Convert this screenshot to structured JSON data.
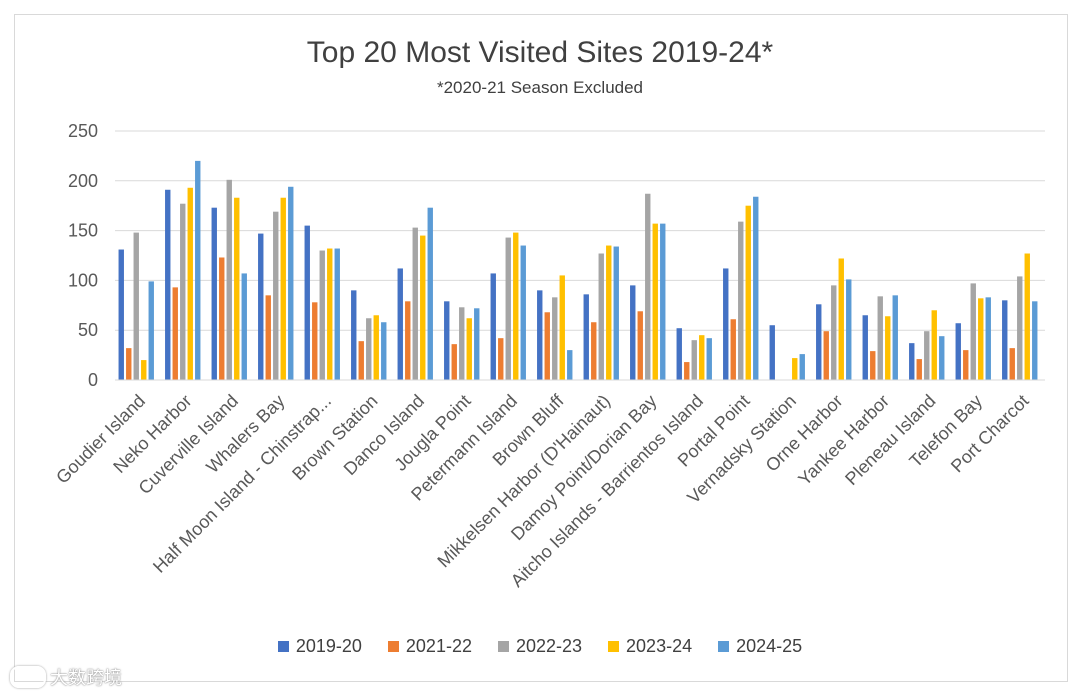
{
  "chart_data": {
    "type": "bar",
    "title": "Top 20 Most Visited Sites 2019-24*",
    "subtitle": "*2020-21 Season Excluded",
    "xlabel": "",
    "ylabel": "",
    "ylim": [
      0,
      250
    ],
    "yticks": [
      0,
      50,
      100,
      150,
      200,
      250
    ],
    "grid": true,
    "legend_position": "bottom",
    "categories": [
      "Goudier Island",
      "Neko Harbor",
      "Cuverville Island",
      "Whalers Bay",
      "Half Moon Island - Chinstrap...",
      "Brown Station",
      "Danco Island",
      "Jougla Point",
      "Petermann Island",
      "Brown Bluff",
      "Mikkelsen Harbor (D'Hainaut)",
      "Damoy Point/Dorian Bay",
      "Aitcho Islands - Barrientos Island",
      "Portal Point",
      "Vernadsky Station",
      "Orne Harbor",
      "Yankee Harbor",
      "Pleneau Island",
      "Telefon Bay",
      "Port Charcot"
    ],
    "series": [
      {
        "name": "2019-20",
        "color": "#4472c4",
        "values": [
          131,
          191,
          173,
          147,
          155,
          90,
          112,
          79,
          107,
          90,
          86,
          95,
          52,
          112,
          55,
          76,
          65,
          37,
          57,
          80
        ]
      },
      {
        "name": "2021-22",
        "color": "#ed7d31",
        "values": [
          32,
          93,
          123,
          85,
          78,
          39,
          79,
          36,
          42,
          68,
          58,
          69,
          18,
          61,
          0,
          49,
          29,
          21,
          30,
          32
        ]
      },
      {
        "name": "2022-23",
        "color": "#a5a5a5",
        "values": [
          148,
          177,
          201,
          169,
          130,
          62,
          153,
          73,
          143,
          83,
          127,
          187,
          40,
          159,
          0,
          95,
          84,
          49,
          97,
          104
        ]
      },
      {
        "name": "2023-24",
        "color": "#ffc000",
        "values": [
          20,
          193,
          183,
          183,
          132,
          65,
          145,
          62,
          148,
          105,
          135,
          157,
          45,
          175,
          22,
          122,
          64,
          70,
          82,
          127
        ]
      },
      {
        "name": "2024-25",
        "color": "#5b9bd5",
        "values": [
          99,
          220,
          107,
          194,
          132,
          58,
          173,
          72,
          135,
          30,
          134,
          157,
          42,
          184,
          26,
          101,
          85,
          44,
          83,
          79
        ]
      }
    ]
  },
  "watermark": {
    "text": "大数跨境"
  }
}
